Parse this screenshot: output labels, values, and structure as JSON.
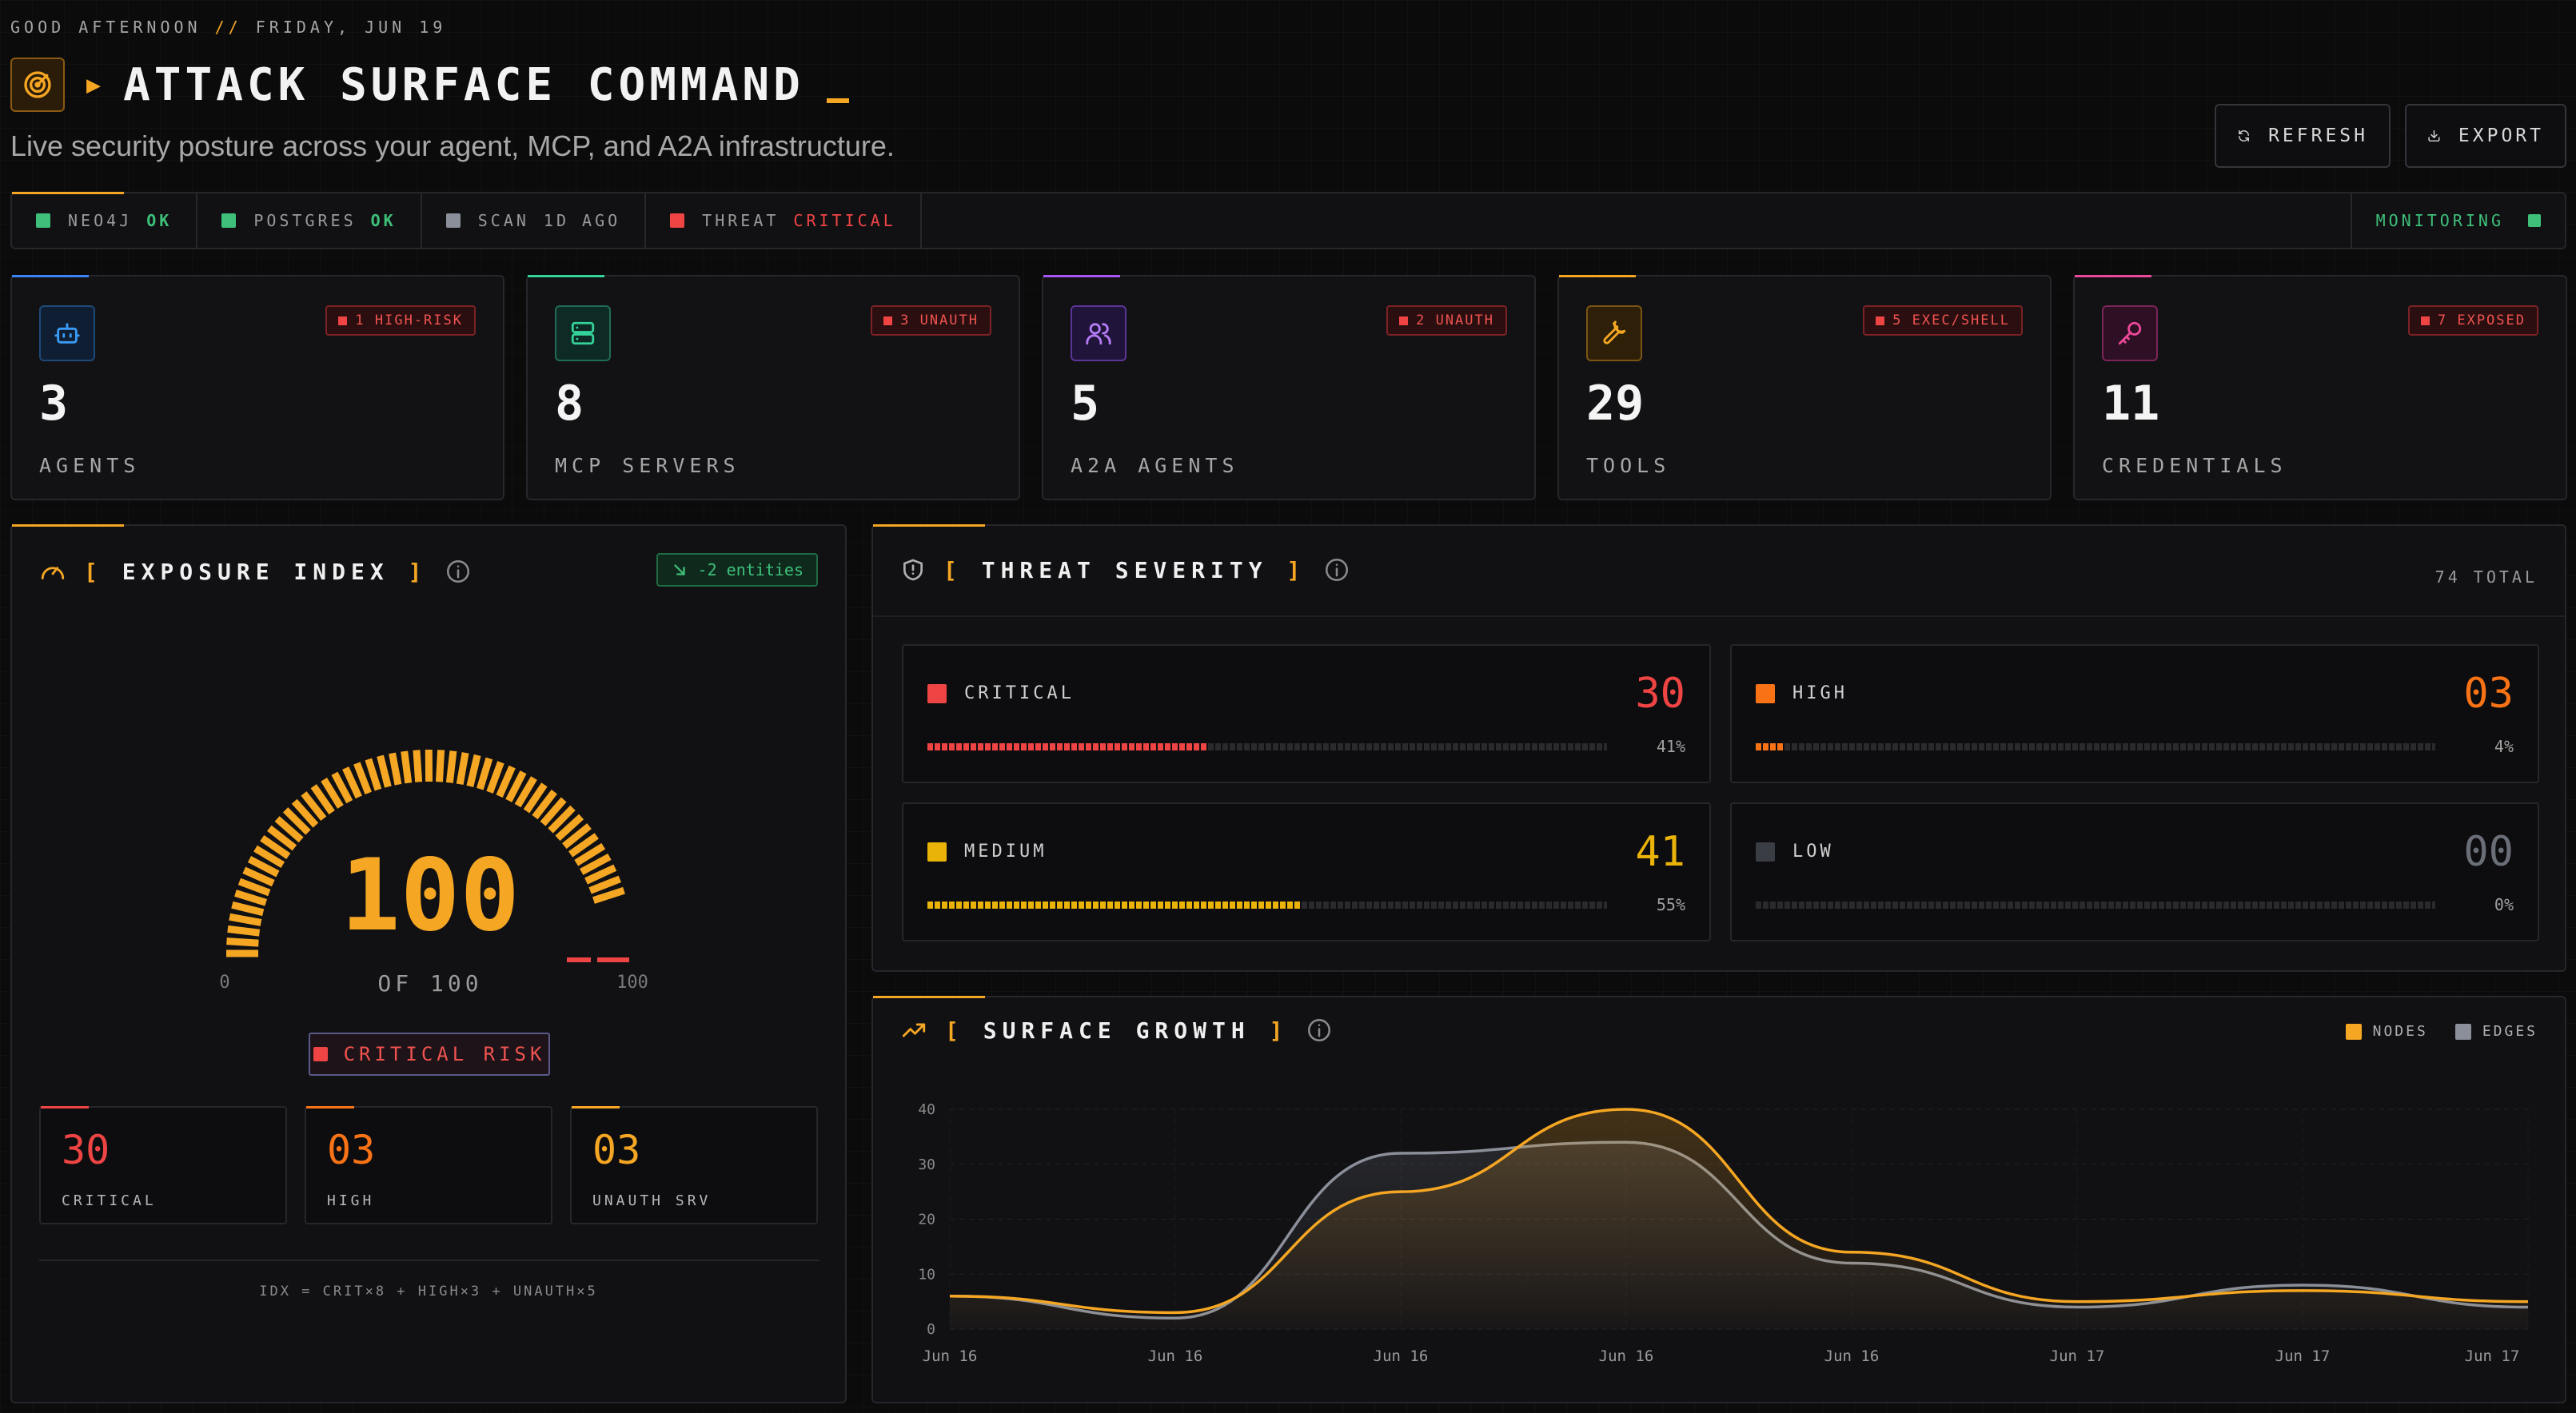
{
  "greeting": {
    "hello": "GOOD AFTERNOON",
    "sep": "//",
    "date": "FRIDAY, JUN 19"
  },
  "header": {
    "title": "ATTACK SURFACE COMMAND",
    "subtitle": "Live security posture across your agent, MCP, and A2A infrastructure.",
    "refresh_label": "REFRESH",
    "export_label": "EXPORT"
  },
  "status": {
    "items": [
      {
        "label": "NEO4J",
        "value": "OK",
        "color": "#3ec07a",
        "value_color": "#3ec07a"
      },
      {
        "label": "POSTGRES",
        "value": "OK",
        "color": "#3ec07a",
        "value_color": "#3ec07a"
      },
      {
        "label": "SCAN",
        "value": "1D AGO",
        "color": "#8a8f99",
        "value_color": "#9a9a9a"
      },
      {
        "label": "THREAT",
        "value": "CRITICAL",
        "color": "#ef4444",
        "value_color": "#ef4444"
      }
    ],
    "monitoring": "MONITORING"
  },
  "stats": [
    {
      "icon": "bot-icon",
      "value": "3",
      "label": "AGENTS",
      "badge": "1 HIGH-RISK",
      "accent": "#3b82f6"
    },
    {
      "icon": "server-icon",
      "value": "8",
      "label": "MCP SERVERS",
      "badge": "3 UNAUTH",
      "accent": "#34d399"
    },
    {
      "icon": "users-icon",
      "value": "5",
      "label": "A2A AGENTS",
      "badge": "2 UNAUTH",
      "accent": "#a855f7"
    },
    {
      "icon": "wrench-icon",
      "value": "29",
      "label": "TOOLS",
      "badge": "5 EXEC/SHELL",
      "accent": "#f5a623"
    },
    {
      "icon": "key-icon",
      "value": "11",
      "label": "CREDENTIALS",
      "badge": "7 EXPOSED",
      "accent": "#ec4899"
    }
  ],
  "exposure": {
    "title": "EXPOSURE INDEX",
    "delta": "-2 entities",
    "score": "100",
    "score_value": 100,
    "score_max": 100,
    "of_label": "OF 100",
    "min_label": "0",
    "max_label": "100",
    "risk_label": "CRITICAL RISK",
    "cards": [
      {
        "value": "30",
        "label": "CRITICAL",
        "color": "#ef4444"
      },
      {
        "value": "03",
        "label": "HIGH",
        "color": "#f97316"
      },
      {
        "value": "03",
        "label": "UNAUTH SRV",
        "color": "#f5a623"
      }
    ],
    "formula": "IDX = CRIT×8 + HIGH×3 + UNAUTH×5"
  },
  "threat": {
    "title": "THREAT SEVERITY",
    "total": "74 TOTAL",
    "levels": [
      {
        "name": "CRITICAL",
        "count": "30",
        "pct": "41%",
        "fraction": 0.41,
        "color": "#ef4444"
      },
      {
        "name": "HIGH",
        "count": "03",
        "pct": "4%",
        "fraction": 0.04,
        "color": "#f97316"
      },
      {
        "name": "MEDIUM",
        "count": "41",
        "pct": "55%",
        "fraction": 0.55,
        "color": "#eab308"
      },
      {
        "name": "LOW",
        "count": "00",
        "pct": "0%",
        "fraction": 0.0,
        "color": "#4b4f58"
      }
    ]
  },
  "growth": {
    "title": "SURFACE GROWTH",
    "legend": {
      "nodes": "NODES",
      "edges": "EDGES"
    },
    "colors": {
      "nodes": "#f5a623",
      "edges": "#8a8f99"
    }
  },
  "chart_data": {
    "type": "area",
    "x": [
      "Jun 16",
      "Jun 16",
      "Jun 16",
      "Jun 16",
      "Jun 16",
      "Jun 17",
      "Jun 17",
      "Jun 17"
    ],
    "series": [
      {
        "name": "NODES",
        "values": [
          6,
          3,
          25,
          40,
          14,
          5,
          7,
          5
        ]
      },
      {
        "name": "EDGES",
        "values": [
          6,
          2,
          32,
          34,
          12,
          4,
          8,
          4
        ]
      }
    ],
    "yticks": [
      0,
      10,
      20,
      30,
      40
    ],
    "ylim": [
      0,
      40
    ],
    "grid": true,
    "legend": "top-right"
  }
}
